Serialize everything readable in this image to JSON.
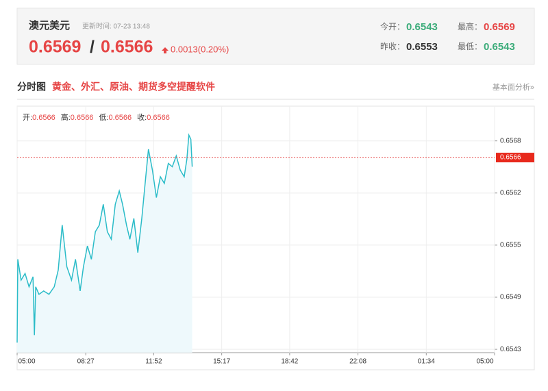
{
  "header": {
    "title": "澳元美元",
    "update": "更新时间: 07-23 13:48",
    "bid": 0.6569,
    "ask": 0.6566,
    "change": "0.0013(0.20%)",
    "stats": [
      {
        "label": "今开：",
        "value": 0.6543,
        "color": "#3cac7a"
      },
      {
        "label": "最高：",
        "value": 0.6569,
        "color": "#e64545"
      },
      {
        "label": "昨收：",
        "value": 0.6553,
        "color": "#333333"
      },
      {
        "label": "最低：",
        "value": 0.6543,
        "color": "#3cac7a"
      }
    ]
  },
  "section": {
    "title": "分时图",
    "promo": "黄金、外汇、原油、期货多空提醒软件",
    "more": "基本面分析»"
  },
  "chart_data": {
    "type": "area",
    "color": "#2bbcc8",
    "fill": "#eef9fc",
    "grid": true,
    "info": [
      {
        "label": "开:",
        "value": 0.6566
      },
      {
        "label": "高:",
        "value": 0.6566
      },
      {
        "label": "低:",
        "value": 0.6566
      },
      {
        "label": "收:",
        "value": 0.6566
      }
    ],
    "current": 0.6566,
    "x": [
      0,
      2,
      12,
      24,
      36,
      48,
      52,
      56,
      66,
      80,
      96,
      112,
      124,
      136,
      150,
      164,
      176,
      190,
      200,
      212,
      224,
      236,
      248,
      260,
      272,
      284,
      296,
      308,
      318,
      330,
      340,
      352,
      364,
      376,
      388,
      396,
      408,
      420,
      432,
      444,
      456,
      468,
      480,
      492,
      504,
      512,
      518,
      524,
      528
    ],
    "values": [
      0.65438,
      0.65538,
      0.65513,
      0.65521,
      0.65505,
      0.65517,
      0.65447,
      0.65505,
      0.65496,
      0.655,
      0.65496,
      0.65505,
      0.65525,
      0.65579,
      0.65529,
      0.65513,
      0.65538,
      0.655,
      0.65529,
      0.65554,
      0.65538,
      0.65571,
      0.65579,
      0.65604,
      0.65571,
      0.65562,
      0.65604,
      0.6562,
      0.65604,
      0.65579,
      0.65562,
      0.65587,
      0.65546,
      0.65587,
      0.65637,
      0.6567,
      0.65645,
      0.65612,
      0.65637,
      0.65629,
      0.65653,
      0.65649,
      0.65662,
      0.65645,
      0.65637,
      0.65658,
      0.65687,
      0.65682,
      0.65649
    ],
    "xlim": [
      0,
      1440
    ],
    "xticks": [
      {
        "value": 0,
        "label": "05:00"
      },
      {
        "value": 207,
        "label": "08:27"
      },
      {
        "value": 412,
        "label": "11:52"
      },
      {
        "value": 617,
        "label": "15:17"
      },
      {
        "value": 822,
        "label": "18:42"
      },
      {
        "value": 1028,
        "label": "22:08"
      },
      {
        "value": 1234,
        "label": "01:34"
      },
      {
        "value": 1440,
        "label": "05:00"
      }
    ],
    "ylim": [
      0.65426,
      0.6572
    ],
    "yticks": [
      0.6543,
      {
        "value": 0.654925,
        "label": "0.6549"
      },
      {
        "value": 0.65555,
        "label": "0.6555"
      },
      {
        "value": 0.656175,
        "label": "0.6562"
      },
      0.6568
    ]
  }
}
